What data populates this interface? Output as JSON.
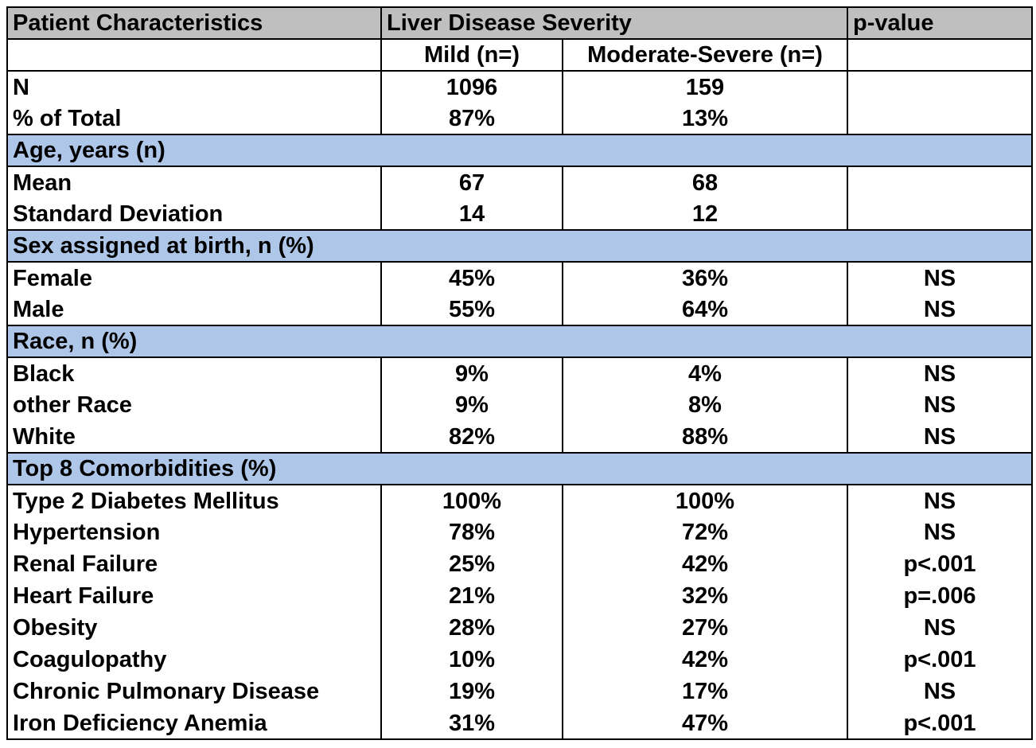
{
  "header": {
    "col1": "Patient Characteristics",
    "col2": "Liver  Disease  Severity",
    "col4": "p-value"
  },
  "subheader": {
    "mild": "Mild (n=)",
    "moderate": "Moderate-Severe (n=)"
  },
  "summary": [
    {
      "label": "N",
      "mild": "1096",
      "moderate": "159",
      "p": ""
    },
    {
      "label": "% of Total",
      "mild": "87%",
      "moderate": "13%",
      "p": ""
    }
  ],
  "sections": [
    {
      "title": "Age, years (n)",
      "rows": [
        {
          "label": "Mean",
          "mild": "67",
          "moderate": "68",
          "p": ""
        },
        {
          "label": "Standard Deviation",
          "mild": "14",
          "moderate": "12",
          "p": ""
        }
      ]
    },
    {
      "title": "Sex assigned at birth, n (%)",
      "rows": [
        {
          "label": "Female",
          "mild": "45%",
          "moderate": "36%",
          "p": "NS"
        },
        {
          "label": "Male",
          "mild": "55%",
          "moderate": "64%",
          "p": "NS"
        }
      ]
    },
    {
      "title": "Race, n (%)",
      "rows": [
        {
          "label": "Black",
          "mild": "9%",
          "moderate": "4%",
          "p": "NS"
        },
        {
          "label": "other Race",
          "mild": "9%",
          "moderate": "8%",
          "p": "NS"
        },
        {
          "label": "White",
          "mild": "82%",
          "moderate": "88%",
          "p": "NS"
        }
      ]
    },
    {
      "title": "Top 8 Comorbidities (%)",
      "rows": [
        {
          "label": "Type 2 Diabetes Mellitus",
          "mild": "100%",
          "moderate": "100%",
          "p": "NS"
        },
        {
          "label": "Hypertension",
          "mild": "78%",
          "moderate": "72%",
          "p": "NS"
        },
        {
          "label": "Renal Failure",
          "mild": "25%",
          "moderate": "42%",
          "p": "p<.001"
        },
        {
          "label": "Heart Failure",
          "mild": "21%",
          "moderate": "32%",
          "p": "p=.006"
        },
        {
          "label": "Obesity",
          "mild": "28%",
          "moderate": "27%",
          "p": "NS"
        },
        {
          "label": "Coagulopathy",
          "mild": "10%",
          "moderate": "42%",
          "p": "p<.001"
        },
        {
          "label": "Chronic Pulmonary Disease",
          "mild": "19%",
          "moderate": "17%",
          "p": "NS"
        },
        {
          "label": "Iron Deficiency Anemia",
          "mild": "31%",
          "moderate": "47%",
          "p": "p<.001"
        }
      ]
    }
  ],
  "colors": {
    "header_bg": "#bfbfbf",
    "section_bg": "#aec7e8"
  }
}
